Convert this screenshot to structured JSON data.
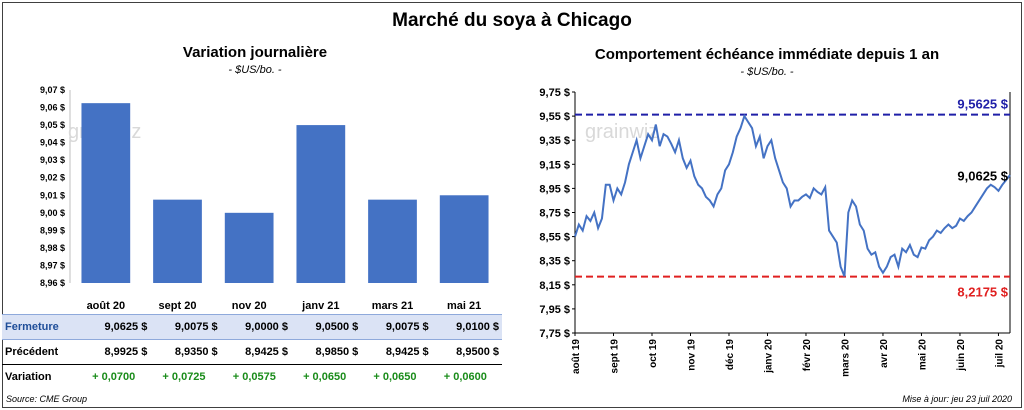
{
  "main_title": "Marché du soya à Chicago",
  "left_chart": {
    "title": "Variation journalière",
    "unit": "- $US/bo. -",
    "watermark": "grainwiz"
  },
  "right_chart": {
    "title": "Comportement échéance immédiate depuis 1 an",
    "unit": "- $US/bo. -",
    "watermark": "grainwiz",
    "max_label": "9,5625 $",
    "min_label": "8,2175 $",
    "last_label": "9,0625 $"
  },
  "table": {
    "rows": [
      {
        "label": "Fermeture",
        "values": [
          "9,0625  $",
          "9,0075  $",
          "9,0000  $",
          "9,0500  $",
          "9,0075  $",
          "9,0100  $"
        ]
      },
      {
        "label": "Précédent",
        "values": [
          "8,9925  $",
          "8,9350  $",
          "8,9425  $",
          "8,9850  $",
          "8,9425  $",
          "8,9500  $"
        ]
      },
      {
        "label": "Variation",
        "values": [
          "+ 0,0700",
          "+ 0,0725",
          "+ 0,0575",
          "+ 0,0650",
          "+ 0,0650",
          "+ 0,0600"
        ]
      }
    ]
  },
  "source": "Source: CME Group",
  "updated": "Mise à jour: jeu 23 juil 2020",
  "colors": {
    "bar": "#4472c4",
    "line": "#4472c4",
    "max_line": "#1f1fa8",
    "min_line": "#e02020",
    "positive": "#1a8c1a"
  },
  "chart_data": [
    {
      "type": "bar",
      "categories": [
        "août 20",
        "sept 20",
        "nov 20",
        "janv 21",
        "mars 21",
        "mai 21"
      ],
      "values": [
        9.0625,
        9.0075,
        9.0,
        9.05,
        9.0075,
        9.01
      ],
      "ylim": [
        8.96,
        9.07
      ],
      "yticks": [
        "8,96 $",
        "8,97 $",
        "8,98 $",
        "8,99 $",
        "9,00 $",
        "9,01 $",
        "9,02 $",
        "9,03 $",
        "9,04 $",
        "9,05 $",
        "9,06 $",
        "9,07 $"
      ],
      "grid": false
    },
    {
      "type": "line",
      "ylim": [
        7.75,
        9.75
      ],
      "yticks": [
        "7,75 $",
        "7,95 $",
        "8,15 $",
        "8,35 $",
        "8,55 $",
        "8,75 $",
        "8,95 $",
        "9,15 $",
        "9,35 $",
        "9,55 $",
        "9,75 $"
      ],
      "xticks": [
        "août 19",
        "sept 19",
        "oct 19",
        "nov 19",
        "déc 19",
        "janv 20",
        "févr 20",
        "mars 20",
        "avr 20",
        "mai 20",
        "juin 20",
        "juil 20"
      ],
      "reference_lines": [
        {
          "value": 9.5625,
          "label": "9,5625 $"
        },
        {
          "value": 8.2175,
          "label": "8,2175 $"
        }
      ],
      "series": [
        {
          "x": [
            0,
            0.1,
            0.2,
            0.3,
            0.4,
            0.5,
            0.6,
            0.7,
            0.8,
            0.9,
            1.0,
            1.1,
            1.2,
            1.3,
            1.4,
            1.5,
            1.6,
            1.7,
            1.8,
            1.9,
            2.0,
            2.1,
            2.2,
            2.3,
            2.4,
            2.5,
            2.6,
            2.7,
            2.8,
            2.9,
            3.0,
            3.1,
            3.2,
            3.3,
            3.4,
            3.5,
            3.6,
            3.7,
            3.8,
            3.9,
            4.0,
            4.1,
            4.2,
            4.3,
            4.4,
            4.5,
            4.6,
            4.7,
            4.8,
            4.9,
            5.0,
            5.1,
            5.2,
            5.3,
            5.4,
            5.5,
            5.6,
            5.7,
            5.8,
            5.9,
            6.0,
            6.1,
            6.2,
            6.3,
            6.4,
            6.5,
            6.6,
            6.7,
            6.8,
            6.9,
            7.0,
            7.1,
            7.2,
            7.3,
            7.4,
            7.5,
            7.6,
            7.7,
            7.8,
            7.9,
            8.0,
            8.1,
            8.2,
            8.3,
            8.4,
            8.5,
            8.6,
            8.7,
            8.8,
            8.9,
            9.0,
            9.1,
            9.2,
            9.3,
            9.4,
            9.5,
            9.6,
            9.7,
            9.8,
            9.9,
            10.0,
            10.1,
            10.2,
            10.3,
            10.4,
            10.5,
            10.6,
            10.7,
            10.8,
            10.9,
            11.0,
            11.1,
            11.2,
            11.3
          ],
          "y": [
            8.55,
            8.65,
            8.6,
            8.72,
            8.68,
            8.75,
            8.62,
            8.7,
            8.98,
            8.98,
            8.85,
            8.95,
            8.9,
            9.0,
            9.15,
            9.25,
            9.35,
            9.2,
            9.3,
            9.4,
            9.35,
            9.48,
            9.3,
            9.4,
            9.38,
            9.32,
            9.25,
            9.35,
            9.2,
            9.12,
            9.18,
            9.05,
            8.98,
            8.95,
            8.88,
            8.85,
            8.8,
            8.9,
            8.95,
            9.1,
            9.15,
            9.25,
            9.38,
            9.45,
            9.55,
            9.5,
            9.45,
            9.3,
            9.38,
            9.2,
            9.3,
            9.35,
            9.2,
            9.1,
            9.0,
            8.95,
            8.8,
            8.85,
            8.85,
            8.88,
            8.9,
            8.87,
            8.95,
            8.92,
            8.9,
            8.96,
            8.6,
            8.55,
            8.5,
            8.3,
            8.22,
            8.75,
            8.85,
            8.8,
            8.65,
            8.6,
            8.45,
            8.4,
            8.42,
            8.3,
            8.25,
            8.3,
            8.38,
            8.4,
            8.3,
            8.45,
            8.42,
            8.48,
            8.4,
            8.38,
            8.46,
            8.45,
            8.52,
            8.55,
            8.6,
            8.58,
            8.62,
            8.65,
            8.62,
            8.64,
            8.7,
            8.68,
            8.72,
            8.75,
            8.8,
            8.85,
            8.9,
            8.95,
            8.98,
            8.96,
            8.93,
            8.98,
            9.02,
            9.06
          ]
        }
      ]
    }
  ]
}
